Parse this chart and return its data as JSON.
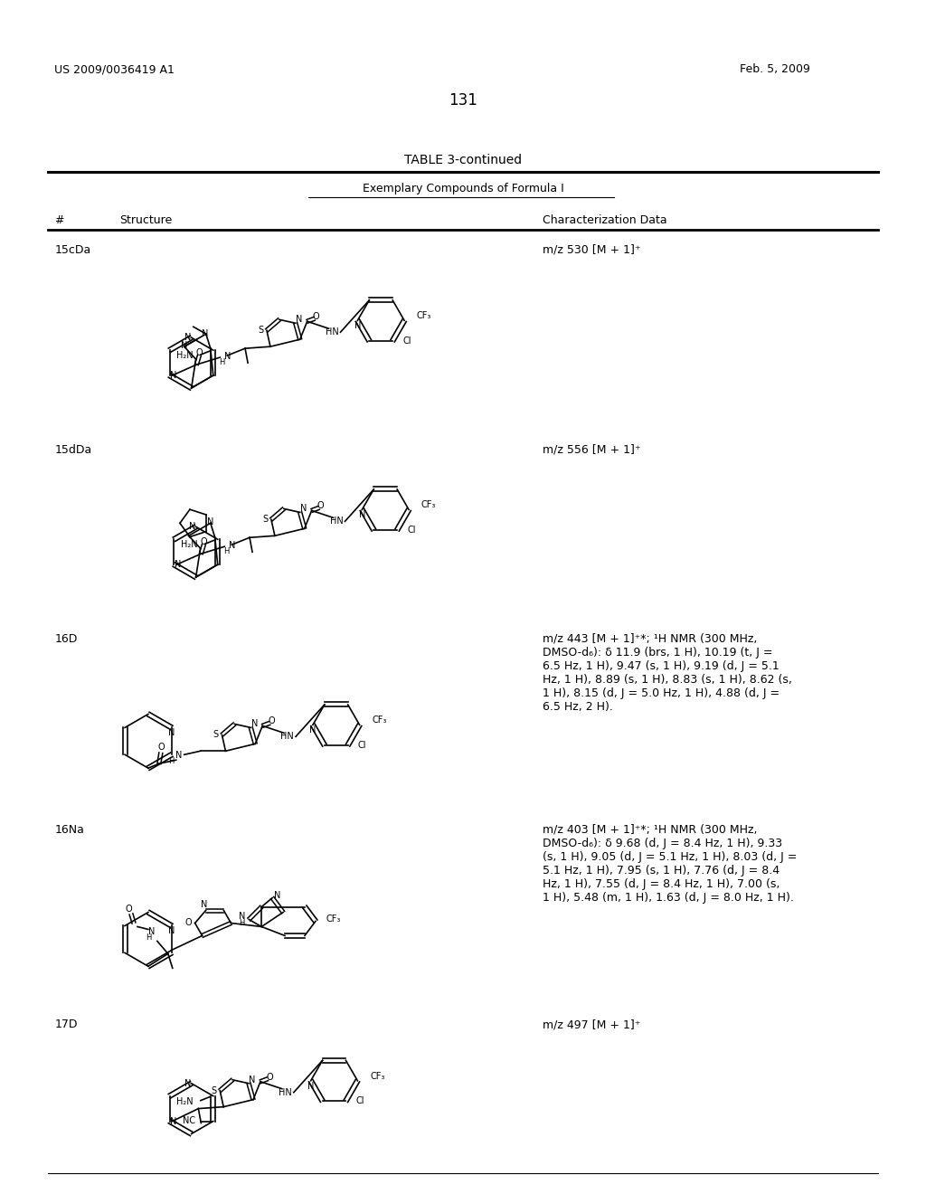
{
  "page_number": "131",
  "patent_number": "US 2009/0036419 A1",
  "patent_date": "Feb. 5, 2009",
  "table_title": "TABLE 3-continued",
  "table_subtitle": "Exemplary Compounds of Formula I",
  "col1_header": "#",
  "col2_header": "Structure",
  "col3_header": "Characterization Data",
  "background_color": "#ffffff",
  "compounds": [
    {
      "id": "15cDa",
      "data": "m/z 530 [M + 1]⁺"
    },
    {
      "id": "15dDa",
      "data": "m/z 556 [M + 1]⁺"
    },
    {
      "id": "16D",
      "data": "m/z 443 [M + 1]⁺*; ¹H NMR (300 MHz,\nDMSO-d₆): δ 11.9 (brs, 1 H), 10.19 (t, J =\n6.5 Hz, 1 H), 9.47 (s, 1 H), 9.19 (d, J = 5.1\nHz, 1 H), 8.89 (s, 1 H), 8.83 (s, 1 H), 8.62 (s,\n1 H), 8.15 (d, J = 5.0 Hz, 1 H), 4.88 (d, J =\n6.5 Hz, 2 H)."
    },
    {
      "id": "16Na",
      "data": "m/z 403 [M + 1]⁺*; ¹H NMR (300 MHz,\nDMSO-d₆): δ 9.68 (d, J = 8.4 Hz, 1 H), 9.33\n(s, 1 H), 9.05 (d, J = 5.1 Hz, 1 H), 8.03 (d, J =\n5.1 Hz, 1 H), 7.95 (s, 1 H), 7.76 (d, J = 8.4\nHz, 1 H), 7.55 (d, J = 8.4 Hz, 1 H), 7.00 (s,\n1 H), 5.48 (m, 1 H), 1.63 (d, J = 8.0 Hz, 1 H)."
    },
    {
      "id": "17D",
      "data": "m/z 497 [M + 1]⁺"
    }
  ]
}
